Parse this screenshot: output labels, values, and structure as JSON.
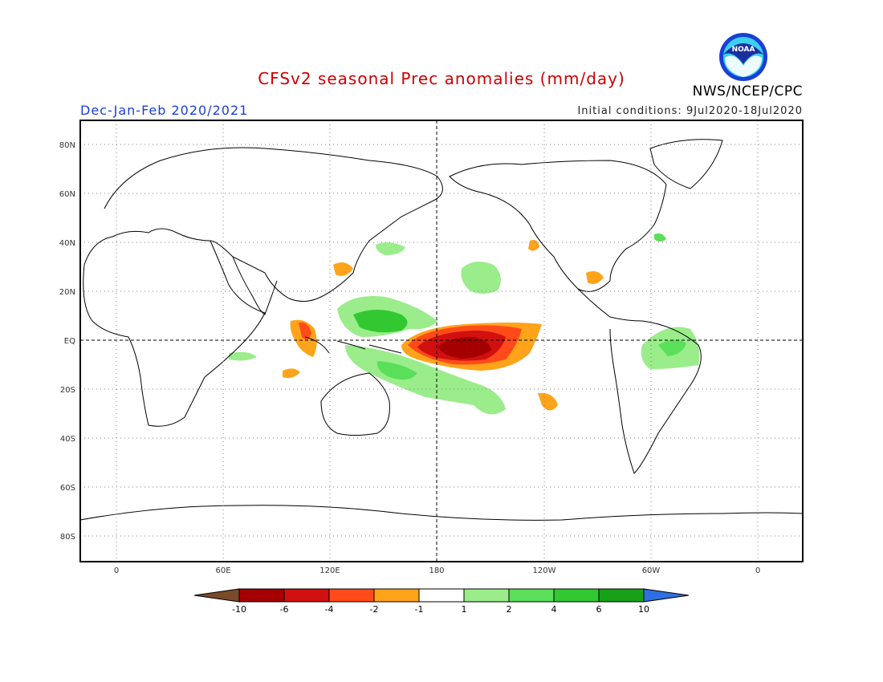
{
  "title": "CFSv2 seasonal Prec anomalies (mm/day)",
  "season": "Dec-Jan-Feb 2020/2021",
  "initial_conditions": "Initial conditions: 9Jul2020-18Jul2020",
  "agency": "NWS/NCEP/CPC",
  "logo_text": "NOAA",
  "colors": {
    "title": "#cc0000",
    "season": "#1a3fd6",
    "frame": "#000000"
  },
  "map": {
    "lat_labels": [
      "80N",
      "60N",
      "40N",
      "20N",
      "EQ",
      "20S",
      "40S",
      "60S",
      "80S"
    ],
    "lon_labels": [
      "0",
      "60E",
      "120E",
      "180",
      "120W",
      "60W",
      "0"
    ]
  },
  "legend": {
    "bins": [
      {
        "color": "#7a4a2a"
      },
      {
        "color": "#a50000"
      },
      {
        "color": "#d11010"
      },
      {
        "color": "#ff4a1a"
      },
      {
        "color": "#ffa31a"
      },
      {
        "color": "#ffffff"
      },
      {
        "color": "#9aed8a"
      },
      {
        "color": "#5adf5a"
      },
      {
        "color": "#32c832"
      },
      {
        "color": "#18a018"
      },
      {
        "color": "#2f6fe0"
      }
    ],
    "tick_labels": [
      "-10",
      "-6",
      "-4",
      "-2",
      "-1",
      "1",
      "2",
      "4",
      "6",
      "10"
    ]
  }
}
